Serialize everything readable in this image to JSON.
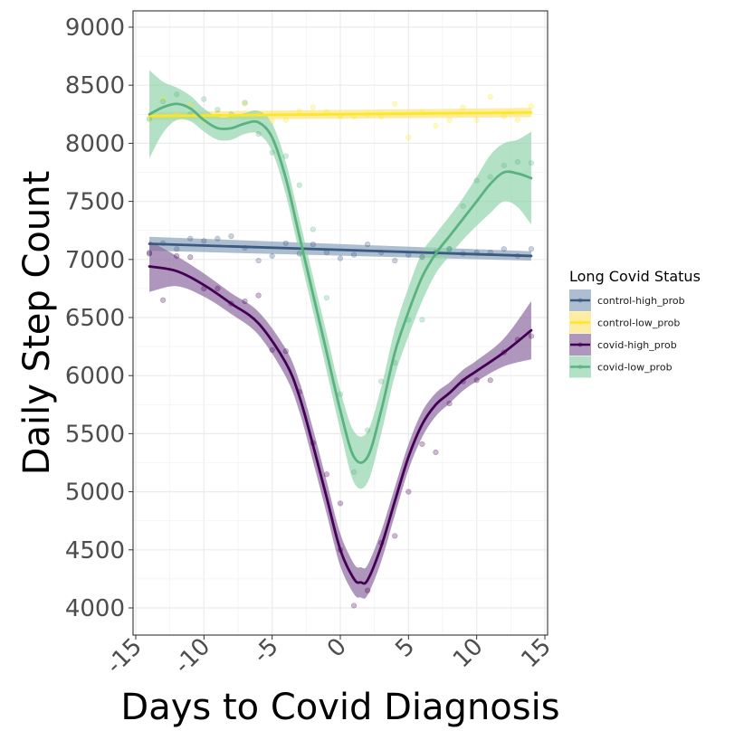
{
  "chart_data": {
    "type": "line",
    "title": "",
    "xlabel": "Days to Covid Diagnosis",
    "ylabel": "Daily Step Count",
    "xlim": [
      -15,
      15
    ],
    "ylim": [
      4000,
      9000
    ],
    "x_ticks": [
      -15,
      -10,
      -5,
      0,
      5,
      10,
      15
    ],
    "x_tick_labels": [
      "-15",
      "-10",
      "-5",
      "0",
      "5",
      "10",
      "15"
    ],
    "y_ticks": [
      4000,
      4500,
      5000,
      5500,
      6000,
      6500,
      7000,
      7500,
      8000,
      8500,
      9000
    ],
    "y_tick_labels": [
      "4000",
      "4500",
      "5000",
      "5500",
      "6000",
      "6500",
      "7000",
      "7500",
      "8000",
      "8500",
      "9000"
    ],
    "grid": true,
    "legend_title": "Long Covid Status",
    "legend_position": "right",
    "series": [
      {
        "name": "control-high_prob",
        "color": "#3b5a80",
        "band_color": "#8ca3bd",
        "smooth": {
          "x": [
            -14,
            14
          ],
          "y": [
            7135,
            7030
          ],
          "lower": [
            7075,
            6990
          ],
          "upper": [
            7195,
            7070
          ]
        },
        "points": [
          [
            -14,
            7060
          ],
          [
            -13,
            7140
          ],
          [
            -12,
            7090
          ],
          [
            -11,
            7180
          ],
          [
            -10,
            7160
          ],
          [
            -9,
            7180
          ],
          [
            -8,
            7200
          ],
          [
            -7,
            7100
          ],
          [
            -6,
            6990
          ],
          [
            -5,
            7030
          ],
          [
            -4,
            7140
          ],
          [
            -3,
            7050
          ],
          [
            -2,
            7130
          ],
          [
            -1,
            7060
          ],
          [
            0,
            7010
          ],
          [
            1,
            7040
          ],
          [
            2,
            7130
          ],
          [
            3,
            7060
          ],
          [
            4,
            6990
          ],
          [
            5,
            7040
          ],
          [
            6,
            7020
          ],
          [
            7,
            7060
          ],
          [
            8,
            7090
          ],
          [
            9,
            7050
          ],
          [
            10,
            7060
          ],
          [
            11,
            7060
          ],
          [
            12,
            7090
          ],
          [
            13,
            7030
          ],
          [
            14,
            7090
          ]
        ]
      },
      {
        "name": "control-low_prob",
        "color": "#fde725",
        "band_color": "#fbe67a",
        "smooth": {
          "x": [
            -14,
            14
          ],
          "y": [
            8235,
            8265
          ],
          "lower": [
            8200,
            8225
          ],
          "upper": [
            8270,
            8305
          ]
        },
        "points": [
          [
            -14,
            8210
          ],
          [
            -13,
            8380
          ],
          [
            -12,
            8250
          ],
          [
            -11,
            8330
          ],
          [
            -10,
            8200
          ],
          [
            -9,
            8260
          ],
          [
            -8,
            8230
          ],
          [
            -7,
            8340
          ],
          [
            -6,
            8250
          ],
          [
            -5,
            8190
          ],
          [
            -4,
            8200
          ],
          [
            -3,
            8280
          ],
          [
            -2,
            8310
          ],
          [
            -1,
            8270
          ],
          [
            0,
            8230
          ],
          [
            1,
            8230
          ],
          [
            2,
            8250
          ],
          [
            3,
            8230
          ],
          [
            4,
            8340
          ],
          [
            5,
            8050
          ],
          [
            6,
            8270
          ],
          [
            7,
            8150
          ],
          [
            8,
            8200
          ],
          [
            9,
            8310
          ],
          [
            10,
            8200
          ],
          [
            11,
            8400
          ],
          [
            12,
            8230
          ],
          [
            13,
            8200
          ],
          [
            14,
            8320
          ]
        ]
      },
      {
        "name": "covid-high_prob",
        "color": "#440154",
        "band_color": "#8c6aa0",
        "smooth": {
          "x": [
            -14,
            -12,
            -10,
            -8,
            -6,
            -4,
            -3,
            -2,
            -1,
            0,
            1,
            1.5,
            2,
            3,
            4,
            5,
            6,
            7,
            8,
            9,
            10,
            12,
            14
          ],
          "y": [
            6940,
            6900,
            6780,
            6620,
            6450,
            6110,
            5820,
            5400,
            4950,
            4500,
            4250,
            4220,
            4240,
            4530,
            4920,
            5300,
            5580,
            5750,
            5850,
            5960,
            6040,
            6200,
            6390
          ],
          "lower": [
            6720,
            6770,
            6680,
            6530,
            6350,
            5990,
            5690,
            5260,
            4810,
            4360,
            4120,
            4090,
            4110,
            4400,
            4800,
            5190,
            5470,
            5650,
            5760,
            5870,
            5950,
            6080,
            6140
          ],
          "upper": [
            7160,
            7030,
            6880,
            6710,
            6550,
            6230,
            5950,
            5540,
            5090,
            4640,
            4380,
            4350,
            4370,
            4660,
            5040,
            5410,
            5690,
            5850,
            5940,
            6050,
            6130,
            6320,
            6640
          ]
        },
        "points": [
          [
            -14,
            7050
          ],
          [
            -13,
            6650
          ],
          [
            -12,
            7030
          ],
          [
            -11,
            7020
          ],
          [
            -10,
            6750
          ],
          [
            -9,
            6750
          ],
          [
            -8,
            6620
          ],
          [
            -7,
            6640
          ],
          [
            -6,
            6690
          ],
          [
            -5,
            6220
          ],
          [
            -4,
            6210
          ],
          [
            -3,
            5860
          ],
          [
            -2,
            5420
          ],
          [
            -1,
            5150
          ],
          [
            0,
            4900
          ],
          [
            0,
            4500
          ],
          [
            1,
            4020
          ],
          [
            2,
            4150
          ],
          [
            3,
            4560
          ],
          [
            4,
            4620
          ],
          [
            5,
            5000
          ],
          [
            6,
            5410
          ],
          [
            7,
            5340
          ],
          [
            8,
            5760
          ],
          [
            9,
            5950
          ],
          [
            10,
            5960
          ],
          [
            11,
            5960
          ],
          [
            12,
            6200
          ],
          [
            13,
            6310
          ],
          [
            14,
            6340
          ]
        ]
      },
      {
        "name": "covid-low_prob",
        "color": "#5ab281",
        "band_color": "#93d4ad",
        "smooth": {
          "x": [
            -14,
            -13,
            -12,
            -11,
            -10,
            -9,
            -8,
            -7,
            -6,
            -5,
            -4,
            -3,
            -2,
            -1,
            0,
            1,
            2,
            3,
            4,
            5,
            6,
            7,
            8,
            9,
            10,
            11,
            12,
            13,
            14
          ],
          "y": [
            8250,
            8310,
            8340,
            8300,
            8200,
            8130,
            8130,
            8170,
            8180,
            8050,
            7700,
            7200,
            6700,
            6200,
            5700,
            5300,
            5300,
            5700,
            6200,
            6550,
            6850,
            7050,
            7200,
            7350,
            7500,
            7650,
            7750,
            7740,
            7700
          ],
          "lower": [
            7870,
            8090,
            8200,
            8190,
            8100,
            8030,
            8030,
            8080,
            8080,
            7930,
            7560,
            7050,
            6550,
            6040,
            5530,
            5080,
            5080,
            5500,
            6000,
            6340,
            6640,
            6880,
            7030,
            7170,
            7290,
            7400,
            7500,
            7450,
            7300
          ],
          "upper": [
            8630,
            8530,
            8480,
            8410,
            8300,
            8230,
            8230,
            8260,
            8280,
            8170,
            7840,
            7350,
            6850,
            6360,
            5870,
            5520,
            5520,
            5900,
            6400,
            6760,
            7060,
            7220,
            7370,
            7530,
            7710,
            7900,
            8000,
            8030,
            8100
          ]
        },
        "points": [
          [
            -14,
            8210
          ],
          [
            -13,
            8360
          ],
          [
            -12,
            8420
          ],
          [
            -11,
            8250
          ],
          [
            -10,
            8380
          ],
          [
            -9,
            8290
          ],
          [
            -8,
            8250
          ],
          [
            -7,
            8350
          ],
          [
            -6,
            8080
          ],
          [
            -5,
            7920
          ],
          [
            -4,
            7890
          ],
          [
            -3,
            7640
          ],
          [
            -2,
            7260
          ],
          [
            -1,
            6670
          ],
          [
            0,
            5840
          ],
          [
            1,
            5170
          ],
          [
            2,
            5530
          ],
          [
            3,
            5950
          ],
          [
            4,
            6110
          ],
          [
            5,
            6480
          ],
          [
            6,
            6480
          ],
          [
            7,
            7050
          ],
          [
            8,
            7090
          ],
          [
            9,
            7460
          ],
          [
            10,
            7680
          ],
          [
            11,
            7710
          ],
          [
            12,
            7810
          ],
          [
            13,
            7840
          ],
          [
            14,
            7830
          ]
        ]
      }
    ]
  }
}
